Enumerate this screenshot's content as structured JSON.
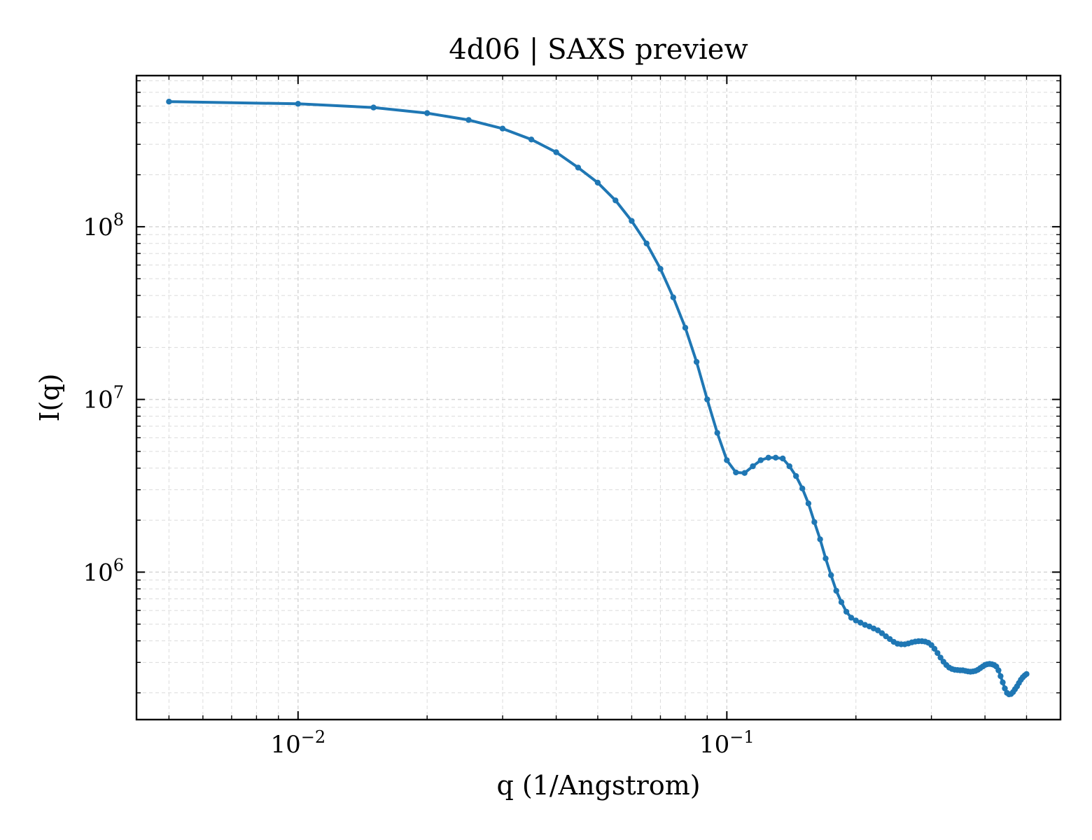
{
  "chart_data": {
    "type": "line",
    "title": "4d06 | SAXS preview",
    "xlabel": "q (1/Angstrom)",
    "ylabel": "I(q)",
    "xscale": "log",
    "yscale": "log",
    "xlim": [
      0.0042,
      0.6
    ],
    "ylim": [
      140000,
      750000000
    ],
    "grid": true,
    "x_tick_labels": [
      {
        "value": 0.01,
        "label": "10",
        "exp": "−2"
      },
      {
        "value": 0.1,
        "label": "10",
        "exp": "−1"
      }
    ],
    "y_tick_labels": [
      {
        "value": 1000000,
        "label": "10",
        "exp": "6"
      },
      {
        "value": 10000000,
        "label": "10",
        "exp": "7"
      },
      {
        "value": 100000000,
        "label": "10",
        "exp": "8"
      }
    ],
    "colors": {
      "series": "#1f77b4",
      "grid": "#d3d3d3",
      "axes": "#000000"
    },
    "series": [
      {
        "marker": "dot",
        "x": [
          0.005,
          0.01,
          0.015,
          0.02,
          0.025,
          0.03,
          0.035,
          0.04,
          0.045,
          0.05,
          0.055,
          0.06,
          0.065,
          0.07,
          0.075,
          0.08,
          0.085,
          0.09,
          0.095,
          0.1,
          0.105,
          0.11,
          0.115,
          0.12,
          0.125,
          0.13,
          0.135,
          0.14,
          0.145,
          0.15,
          0.155,
          0.16,
          0.165,
          0.17,
          0.175,
          0.18,
          0.185,
          0.19,
          0.195,
          0.2,
          0.205,
          0.21,
          0.215,
          0.22,
          0.225,
          0.23,
          0.235,
          0.24,
          0.245,
          0.25,
          0.255,
          0.26,
          0.265,
          0.27,
          0.275,
          0.28,
          0.285,
          0.29,
          0.295,
          0.3,
          0.305,
          0.31,
          0.315,
          0.32,
          0.325,
          0.33,
          0.335,
          0.34,
          0.345,
          0.35,
          0.355,
          0.36,
          0.365,
          0.37,
          0.375,
          0.38,
          0.385,
          0.39,
          0.395,
          0.4,
          0.405,
          0.41,
          0.415,
          0.42,
          0.425,
          0.43,
          0.435,
          0.44,
          0.445,
          0.45,
          0.455,
          0.46,
          0.465,
          0.47,
          0.475,
          0.48,
          0.485,
          0.49,
          0.495,
          0.5
        ],
        "y": [
          530000000,
          515000000,
          490000000,
          455000000,
          415000000,
          370000000,
          320000000,
          270000000,
          220000000,
          180000000,
          142000000,
          108000000,
          80000000,
          57000000,
          39000000,
          26000000,
          16500000,
          10000000,
          6400000,
          4450000,
          3780000,
          3750000,
          4100000,
          4450000,
          4600000,
          4600000,
          4550000,
          4100000,
          3600000,
          3050000,
          2500000,
          1950000,
          1550000,
          1200000,
          960000,
          780000,
          670000,
          590000,
          545000,
          525000,
          510000,
          495000,
          485000,
          472000,
          460000,
          443000,
          425000,
          410000,
          395000,
          385000,
          382000,
          382000,
          386000,
          392000,
          396000,
          398000,
          398000,
          396000,
          390000,
          378000,
          360000,
          340000,
          320000,
          303000,
          290000,
          280000,
          275000,
          272000,
          271000,
          270000,
          270000,
          268000,
          266000,
          265000,
          266000,
          268000,
          272000,
          278000,
          284000,
          290000,
          293000,
          294000,
          293000,
          290000,
          284000,
          270000,
          250000,
          230000,
          212000,
          200000,
          196000,
          197000,
          202000,
          210000,
          218000,
          228000,
          238000,
          246000,
          252000,
          257000
        ]
      }
    ]
  }
}
